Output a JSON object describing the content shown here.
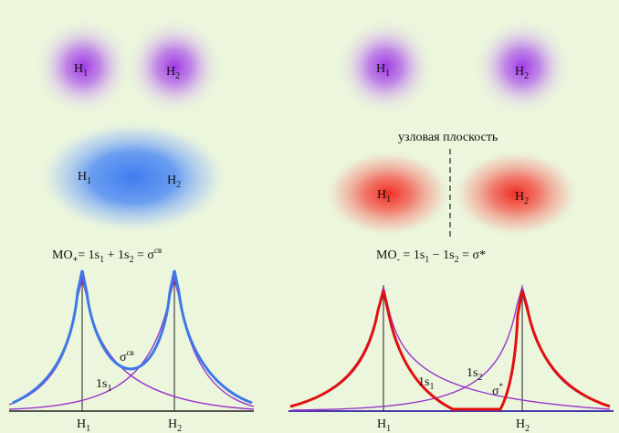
{
  "colors": {
    "background": "#ebf6dc",
    "atomic_orbital": "#a23be0",
    "bonding_cloud": "#4a86f2",
    "antibonding_cloud": "#f0463c",
    "bonding_curve": "#3f78e6",
    "antibonding_curve": "#e01010",
    "atomic_curve": "#9a35c9",
    "axis": "#222222"
  },
  "left_panel": {
    "atom_cloud_1": {
      "nucleus": "H",
      "index": "1"
    },
    "atom_cloud_2": {
      "nucleus": "H",
      "index": "2"
    },
    "mo_cloud": {
      "nucleus_1": "H",
      "index_1": "1",
      "nucleus_2": "H",
      "index_2": "2"
    },
    "equation": {
      "mo": "MO",
      "mo_sign": "+",
      "eq1": "= ",
      "term1": "1s",
      "term1_sub": "1",
      "op": " + ",
      "term2": "1s",
      "term2_sub": "2",
      "eq2": "  = ",
      "sigma": "σ",
      "sigma_sup": "св"
    },
    "plot": {
      "sigma_label": "σ",
      "sigma_label_sup": "св",
      "ao_label": "1s",
      "ao_label_sub": "1",
      "axis_nucleus_1": "H",
      "axis_index_1": "1",
      "axis_nucleus_2": "H",
      "axis_index_2": "2"
    }
  },
  "right_panel": {
    "atom_cloud_1": {
      "nucleus": "H",
      "index": "1"
    },
    "atom_cloud_2": {
      "nucleus": "H",
      "index": "2"
    },
    "nodal_plane_label": "узловая плоскость",
    "mo_cloud": {
      "nucleus_1": "H",
      "index_1": "1",
      "nucleus_2": "H",
      "index_2": "2"
    },
    "equation": {
      "mo": "MO",
      "mo_sign": "-",
      "eq1": " = ",
      "term1": "1s",
      "term1_sub": "1",
      "op": " − ",
      "term2": "1s",
      "term2_sub": "2",
      "eq2": " = ",
      "sigma": "σ*"
    },
    "plot": {
      "ao_label_1": "1s",
      "ao_label_1_sub": "1",
      "ao_label_2": "1s",
      "ao_label_2_sub": "2",
      "sigma_label": "σ",
      "sigma_label_sup": "*",
      "axis_nucleus_1": "H",
      "axis_index_1": "1",
      "axis_nucleus_2": "H",
      "axis_index_2": "2"
    }
  }
}
